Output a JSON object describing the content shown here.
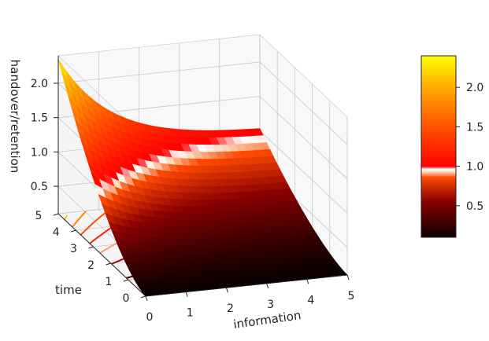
{
  "chart_data": {
    "type": "surface3d",
    "title": "",
    "xlabel": "information",
    "ylabel": "time",
    "zlabel": "handover/retention",
    "x_ticks": [
      "0",
      "1",
      "2",
      "3",
      "4",
      "5"
    ],
    "y_ticks": [
      "0",
      "1",
      "2",
      "3",
      "4",
      "5"
    ],
    "z_ticks": [
      "0.5",
      "1.0",
      "1.5",
      "2.0"
    ],
    "xlim": [
      0,
      5
    ],
    "ylim": [
      0,
      5
    ],
    "zlim": [
      0.1,
      2.4
    ],
    "grid": true,
    "colormap": "hot",
    "colorbar": {
      "ticks": [
        "0.5",
        "1.0",
        "1.5",
        "2.0"
      ],
      "range": [
        0.1,
        2.4
      ],
      "highlight_value": 1.0,
      "placement": "right"
    },
    "surface": {
      "x_range": [
        0,
        5
      ],
      "y_range": [
        0,
        5
      ],
      "z_at_x0_y5": 2.35,
      "z_at_x5_y5": 1.0,
      "z_at_x0_y0": 0.1,
      "z_at_x5_y0": 0.1
    },
    "contour_projection": {
      "plane": "x=0",
      "levels": [
        0.3,
        0.6,
        0.9,
        1.2,
        1.5,
        1.8,
        2.1
      ]
    }
  }
}
